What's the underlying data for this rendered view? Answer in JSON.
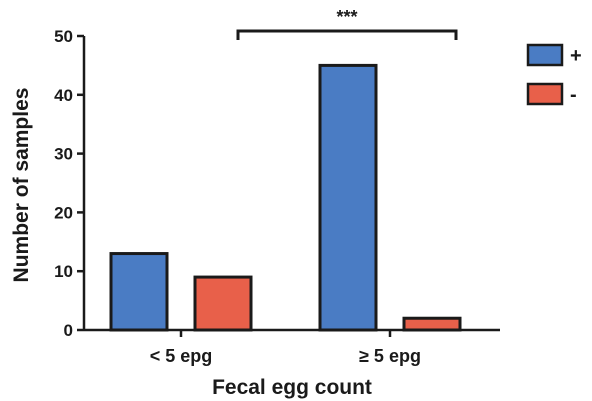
{
  "chart_data": {
    "type": "bar",
    "categories": [
      "< 5 epg",
      "≥ 5 epg"
    ],
    "series": [
      {
        "name": "+",
        "values": [
          13,
          45
        ],
        "color": "#4a7cc4"
      },
      {
        "name": "-",
        "values": [
          9,
          2
        ],
        "color": "#e8604a"
      }
    ],
    "xlabel": "Fecal egg count",
    "ylabel": "Number of samples",
    "ylim": [
      0,
      50
    ],
    "yticks": [
      0,
      10,
      20,
      30,
      40,
      50
    ],
    "grid": false,
    "legend_position": "top-right",
    "annotation": {
      "text": "***",
      "from_category": 0,
      "to_category": 1
    }
  }
}
